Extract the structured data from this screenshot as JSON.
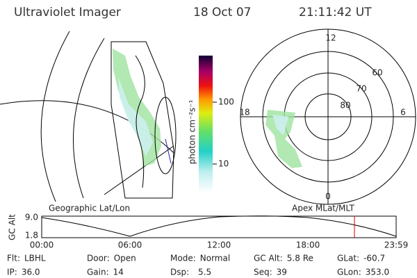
{
  "header": {
    "instrument": "Ultraviolet Imager",
    "date": "18 Oct 07",
    "time": "21:11:42 UT"
  },
  "colorbar": {
    "label": "photon cm⁻²s⁻¹",
    "ticks": [
      "100",
      "10"
    ]
  },
  "polar": {
    "mlt_labels": [
      "12",
      "18",
      "6",
      "0"
    ],
    "mlat_labels": [
      "60",
      "70",
      "80"
    ]
  },
  "panels": {
    "left": "Geographic Lat/Lon",
    "right": "Apex MLat/MLT"
  },
  "altitude": {
    "axis_label": "GC Alt",
    "yticks": [
      "9.0",
      "1.8"
    ],
    "xticks": [
      "00:00",
      "06:00",
      "12:00",
      "18:00",
      "23:59"
    ]
  },
  "footer": [
    [
      {
        "label": "Flt:",
        "value": "LBHL"
      },
      {
        "label": "Door:",
        "value": "Open"
      },
      {
        "label": "Mode:",
        "value": "Normal"
      },
      {
        "label": "GC Alt:",
        "value": "5.8 Re"
      },
      {
        "label": "GLat:",
        "value": "-60.7"
      }
    ],
    [
      {
        "label": "IP:",
        "value": "36.0"
      },
      {
        "label": "Gain:",
        "value": "14"
      },
      {
        "label": "Dsp:",
        "value": "5.5"
      },
      {
        "label": "Seq:",
        "value": "39"
      },
      {
        "label": "GLon:",
        "value": "353.0"
      }
    ]
  ]
}
